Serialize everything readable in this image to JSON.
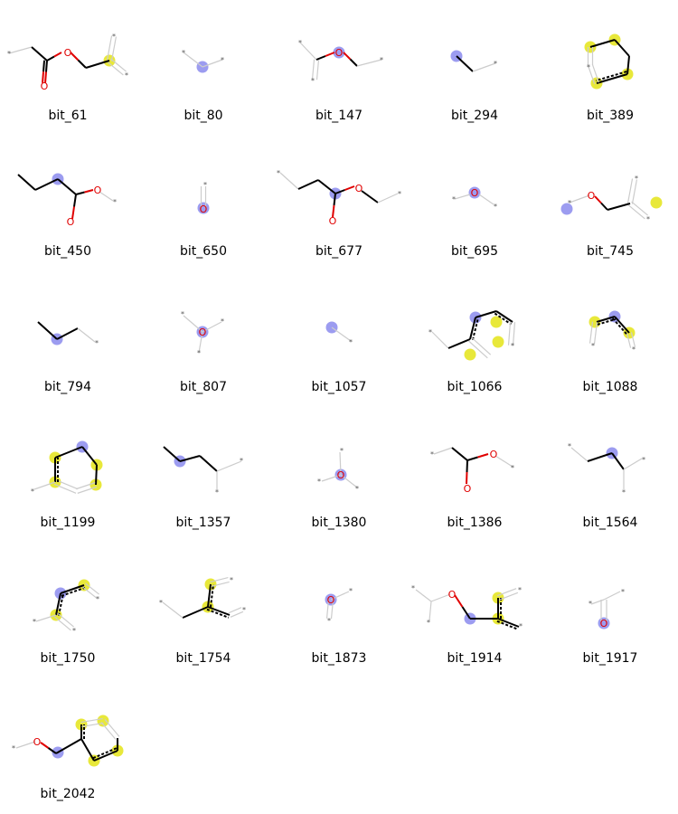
{
  "colors": {
    "center_atom": "#9c9cf0",
    "aromatic_atom": "#e8e83a",
    "bond": "#000000",
    "oxygen": "#e00000",
    "dummy_bond": "#cccccc",
    "dummy_text": "#555555"
  },
  "bits": [
    {
      "label": "bit_61"
    },
    {
      "label": "bit_80"
    },
    {
      "label": "bit_147"
    },
    {
      "label": "bit_294"
    },
    {
      "label": "bit_389"
    },
    {
      "label": "bit_450"
    },
    {
      "label": "bit_650"
    },
    {
      "label": "bit_677"
    },
    {
      "label": "bit_695"
    },
    {
      "label": "bit_745"
    },
    {
      "label": "bit_794"
    },
    {
      "label": "bit_807"
    },
    {
      "label": "bit_1057"
    },
    {
      "label": "bit_1066"
    },
    {
      "label": "bit_1088"
    },
    {
      "label": "bit_1199"
    },
    {
      "label": "bit_1357"
    },
    {
      "label": "bit_1380"
    },
    {
      "label": "bit_1386"
    },
    {
      "label": "bit_1564"
    },
    {
      "label": "bit_1750"
    },
    {
      "label": "bit_1754"
    },
    {
      "label": "bit_1873"
    },
    {
      "label": "bit_1914"
    },
    {
      "label": "bit_1917"
    },
    {
      "label": "bit_2042"
    }
  ],
  "atom_symbol_oxygen": "O",
  "atom_symbol_dummy": "*"
}
